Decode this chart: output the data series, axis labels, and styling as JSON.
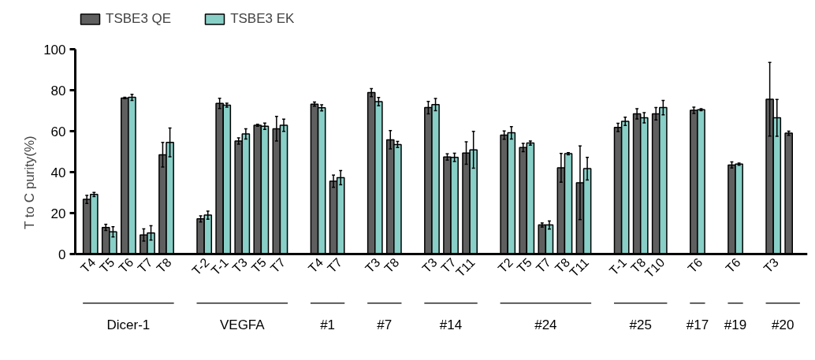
{
  "chart_data": {
    "type": "bar",
    "ylabel": "T to C purity(%)",
    "categories": [
      "T4",
      "T5",
      "T6",
      "T7",
      "T8",
      null,
      "T-2",
      "T-1",
      "T3",
      "T5",
      "T7",
      null,
      "T4",
      "T7",
      null,
      "T3",
      "T8",
      null,
      "T3",
      "T7",
      "T11",
      null,
      "T2",
      "T5",
      "T7",
      "T8",
      "T11",
      null,
      "T-1",
      "T8",
      "T10",
      null,
      "T6",
      null,
      "T6",
      null,
      "T3",
      null
    ],
    "annotations": [
      "Dicer-1",
      "VEGFA",
      "#1",
      "#7",
      "#14",
      "#24",
      "#25",
      "#17",
      "#19",
      "#20"
    ],
    "series": [
      {
        "name": "TSBE3 QE",
        "color": "#5f5f5f",
        "values": [
          26.7,
          13.0,
          76.2,
          9.3,
          48.5,
          null,
          17.2,
          73.6,
          55.2,
          62.9,
          61.2,
          null,
          73.2,
          35.6,
          null,
          78.8,
          55.8,
          null,
          71.5,
          47.4,
          49.3,
          null,
          58.1,
          52.0,
          14.2,
          42.1,
          34.8,
          null,
          61.8,
          68.5,
          68.5,
          null,
          70.2,
          null,
          43.5,
          null,
          75.6,
          59.0
        ],
        "errors": [
          2,
          1.5,
          0.3,
          3,
          6,
          null,
          1.5,
          2.5,
          1.5,
          0.5,
          6,
          null,
          1,
          3,
          null,
          2,
          4.5,
          null,
          3,
          1.5,
          5.5,
          null,
          2,
          2,
          1,
          7,
          18,
          null,
          2,
          2.5,
          3,
          null,
          1.5,
          null,
          1.5,
          null,
          18,
          1
        ]
      },
      {
        "name": "TSBE3 EK",
        "color": "#88cfc7",
        "values": [
          29.1,
          10.9,
          76.5,
          10.3,
          54.5,
          null,
          19.0,
          72.7,
          58.7,
          62.4,
          62.9,
          null,
          71.4,
          37.3,
          null,
          74.4,
          53.5,
          null,
          73.0,
          47.2,
          50.9,
          null,
          59.2,
          54.2,
          14.2,
          49.0,
          41.7,
          null,
          64.8,
          66.5,
          71.5,
          null,
          70.5,
          null,
          43.9,
          null,
          66.5,
          null
        ],
        "errors": [
          1,
          2.5,
          1.5,
          3.5,
          7,
          null,
          2,
          1,
          2.5,
          1.5,
          3,
          null,
          1.5,
          3.5,
          null,
          2,
          1.5,
          null,
          3,
          2,
          9,
          null,
          3,
          1,
          2,
          0.5,
          5.5,
          null,
          2,
          2.5,
          3.5,
          null,
          0.5,
          null,
          0.5,
          null,
          9,
          null
        ]
      }
    ],
    "ylim": [
      0,
      100
    ],
    "yticks": [
      0,
      20,
      40,
      60,
      80,
      100
    ],
    "grid": false,
    "legend": "top left"
  }
}
